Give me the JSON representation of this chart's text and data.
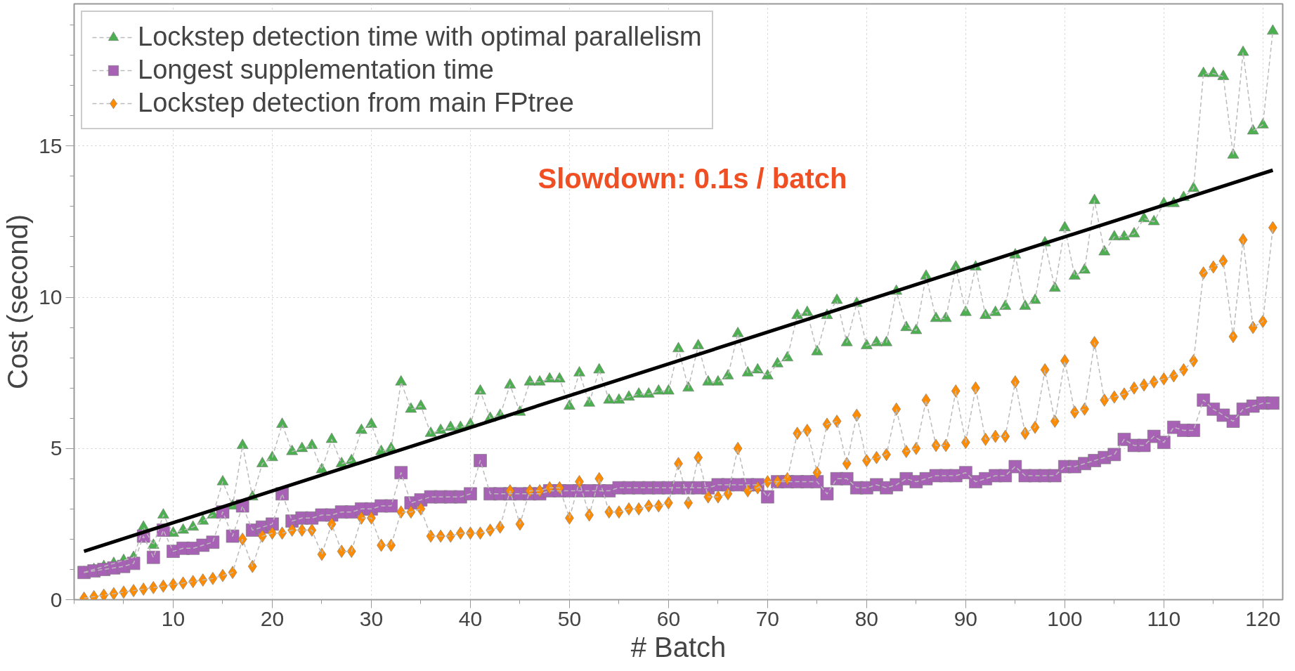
{
  "chart_data": {
    "type": "line",
    "xlabel": "# Batch",
    "ylabel": "Cost (second)",
    "x": [
      1,
      2,
      3,
      4,
      5,
      6,
      7,
      8,
      9,
      10,
      11,
      12,
      13,
      14,
      15,
      16,
      17,
      18,
      19,
      20,
      21,
      22,
      23,
      24,
      25,
      26,
      27,
      28,
      29,
      30,
      31,
      32,
      33,
      34,
      35,
      36,
      37,
      38,
      39,
      40,
      41,
      42,
      43,
      44,
      45,
      46,
      47,
      48,
      49,
      50,
      51,
      52,
      53,
      54,
      55,
      56,
      57,
      58,
      59,
      60,
      61,
      62,
      63,
      64,
      65,
      66,
      67,
      68,
      69,
      70,
      71,
      72,
      73,
      74,
      75,
      76,
      77,
      78,
      79,
      80,
      81,
      82,
      83,
      84,
      85,
      86,
      87,
      88,
      89,
      90,
      91,
      92,
      93,
      94,
      95,
      96,
      97,
      98,
      99,
      100,
      101,
      102,
      103,
      104,
      105,
      106,
      107,
      108,
      109,
      110,
      111,
      112,
      113,
      114,
      115,
      116,
      117,
      118,
      119,
      120,
      121
    ],
    "xlim": [
      0,
      122
    ],
    "ylim": [
      0,
      19.7
    ],
    "xticks": [
      10,
      20,
      30,
      40,
      50,
      60,
      70,
      80,
      90,
      100,
      110,
      120
    ],
    "yticks": [
      0,
      5,
      10,
      15
    ],
    "grid": true,
    "legend": "top left",
    "line_style": "dashed",
    "annotations": [
      "Slowdown: 0.1s / batch"
    ],
    "series": [
      {
        "name": "Lockstep detection time with optimal parallelism",
        "color": "#4caf50",
        "marker": "triangle",
        "values": [
          0.9,
          1.0,
          1.1,
          1.2,
          1.3,
          1.4,
          2.4,
          1.8,
          2.8,
          2.2,
          2.3,
          2.4,
          2.6,
          2.8,
          3.9,
          3.1,
          5.1,
          3.4,
          4.5,
          4.7,
          5.8,
          4.9,
          5.0,
          5.1,
          4.3,
          5.3,
          4.5,
          4.6,
          5.6,
          5.8,
          4.9,
          5.0,
          7.2,
          6.3,
          6.4,
          5.5,
          5.6,
          5.7,
          5.7,
          5.8,
          6.9,
          6.0,
          6.1,
          7.1,
          6.2,
          7.2,
          7.2,
          7.3,
          7.3,
          6.4,
          7.5,
          6.5,
          7.6,
          6.6,
          6.6,
          6.7,
          6.8,
          6.8,
          6.9,
          6.9,
          8.3,
          7.0,
          8.4,
          7.2,
          7.2,
          7.4,
          8.8,
          7.5,
          7.6,
          7.4,
          7.8,
          8.0,
          9.4,
          9.5,
          8.2,
          9.4,
          9.9,
          8.5,
          9.8,
          8.4,
          8.5,
          8.5,
          10.2,
          9.0,
          8.9,
          10.7,
          9.3,
          9.3,
          11.0,
          9.5,
          11.0,
          9.4,
          9.5,
          9.7,
          11.4,
          9.7,
          9.9,
          11.8,
          10.3,
          12.3,
          10.7,
          10.9,
          13.2,
          11.5,
          12.0,
          12.0,
          12.1,
          12.6,
          12.5,
          13.1,
          13.1,
          13.3,
          13.6,
          17.4,
          17.4,
          17.3,
          14.7,
          18.1,
          15.5,
          15.7,
          18.8
        ]
      },
      {
        "name": "Longest supplementation time",
        "color": "#a862b5",
        "marker": "square",
        "values": [
          0.9,
          0.95,
          1.0,
          1.05,
          1.1,
          1.2,
          2.1,
          1.4,
          2.3,
          1.6,
          1.7,
          1.7,
          1.8,
          1.9,
          2.9,
          2.1,
          3.1,
          2.3,
          2.4,
          2.5,
          3.5,
          2.6,
          2.7,
          2.7,
          2.8,
          2.8,
          2.9,
          2.9,
          3.0,
          3.0,
          3.1,
          3.1,
          4.2,
          3.2,
          3.3,
          3.4,
          3.4,
          3.4,
          3.4,
          3.5,
          4.6,
          3.5,
          3.5,
          3.5,
          3.5,
          3.5,
          3.5,
          3.6,
          3.6,
          3.6,
          3.6,
          3.6,
          3.6,
          3.6,
          3.7,
          3.7,
          3.7,
          3.7,
          3.7,
          3.7,
          3.7,
          3.7,
          3.7,
          3.7,
          3.8,
          3.8,
          3.8,
          3.8,
          3.8,
          3.4,
          3.9,
          3.9,
          3.9,
          3.9,
          3.9,
          3.5,
          4.0,
          4.0,
          3.7,
          3.7,
          3.8,
          3.7,
          3.8,
          4.0,
          3.9,
          4.0,
          4.1,
          4.1,
          4.1,
          4.2,
          3.9,
          4.0,
          4.1,
          4.1,
          4.4,
          4.1,
          4.1,
          4.1,
          4.1,
          4.4,
          4.4,
          4.5,
          4.6,
          4.7,
          4.8,
          5.3,
          5.1,
          5.1,
          5.4,
          5.2,
          5.7,
          5.6,
          5.6,
          6.6,
          6.3,
          6.1,
          5.9,
          6.3,
          6.4,
          6.5,
          6.5
        ]
      },
      {
        "name": "Lockstep detection from main FPtree",
        "color": "#ff8c00",
        "marker": "diamond",
        "values": [
          0.05,
          0.1,
          0.15,
          0.2,
          0.25,
          0.3,
          0.35,
          0.4,
          0.45,
          0.5,
          0.55,
          0.6,
          0.65,
          0.7,
          0.8,
          0.9,
          2.0,
          1.1,
          2.1,
          2.2,
          2.2,
          2.3,
          2.3,
          2.3,
          1.5,
          2.5,
          1.6,
          1.6,
          2.7,
          2.7,
          1.8,
          1.8,
          2.9,
          2.9,
          3.0,
          2.1,
          2.1,
          2.1,
          2.2,
          2.2,
          2.2,
          2.3,
          2.4,
          3.6,
          2.5,
          3.6,
          3.6,
          3.7,
          3.7,
          2.7,
          3.9,
          2.8,
          4.0,
          2.9,
          2.9,
          3.0,
          3.0,
          3.1,
          3.1,
          3.2,
          4.5,
          3.2,
          4.7,
          3.4,
          3.4,
          3.5,
          5.0,
          3.6,
          3.7,
          3.9,
          3.9,
          4.0,
          5.5,
          5.6,
          4.2,
          5.8,
          5.9,
          4.5,
          6.1,
          4.6,
          4.7,
          4.8,
          6.3,
          4.9,
          5.0,
          6.6,
          5.1,
          5.1,
          6.9,
          5.2,
          7.0,
          5.3,
          5.4,
          5.4,
          7.2,
          5.5,
          5.7,
          7.6,
          5.9,
          7.9,
          6.2,
          6.3,
          8.5,
          6.6,
          6.7,
          6.8,
          7.0,
          7.1,
          7.2,
          7.3,
          7.4,
          7.6,
          7.9,
          10.8,
          11.0,
          11.2,
          8.7,
          11.9,
          9.0,
          9.2,
          12.3
        ]
      },
      {
        "type": "line",
        "color": "#000000",
        "marker": "none",
        "line_style": "solid",
        "x": [
          1,
          121
        ],
        "values": [
          1.6,
          14.2
        ]
      }
    ]
  }
}
